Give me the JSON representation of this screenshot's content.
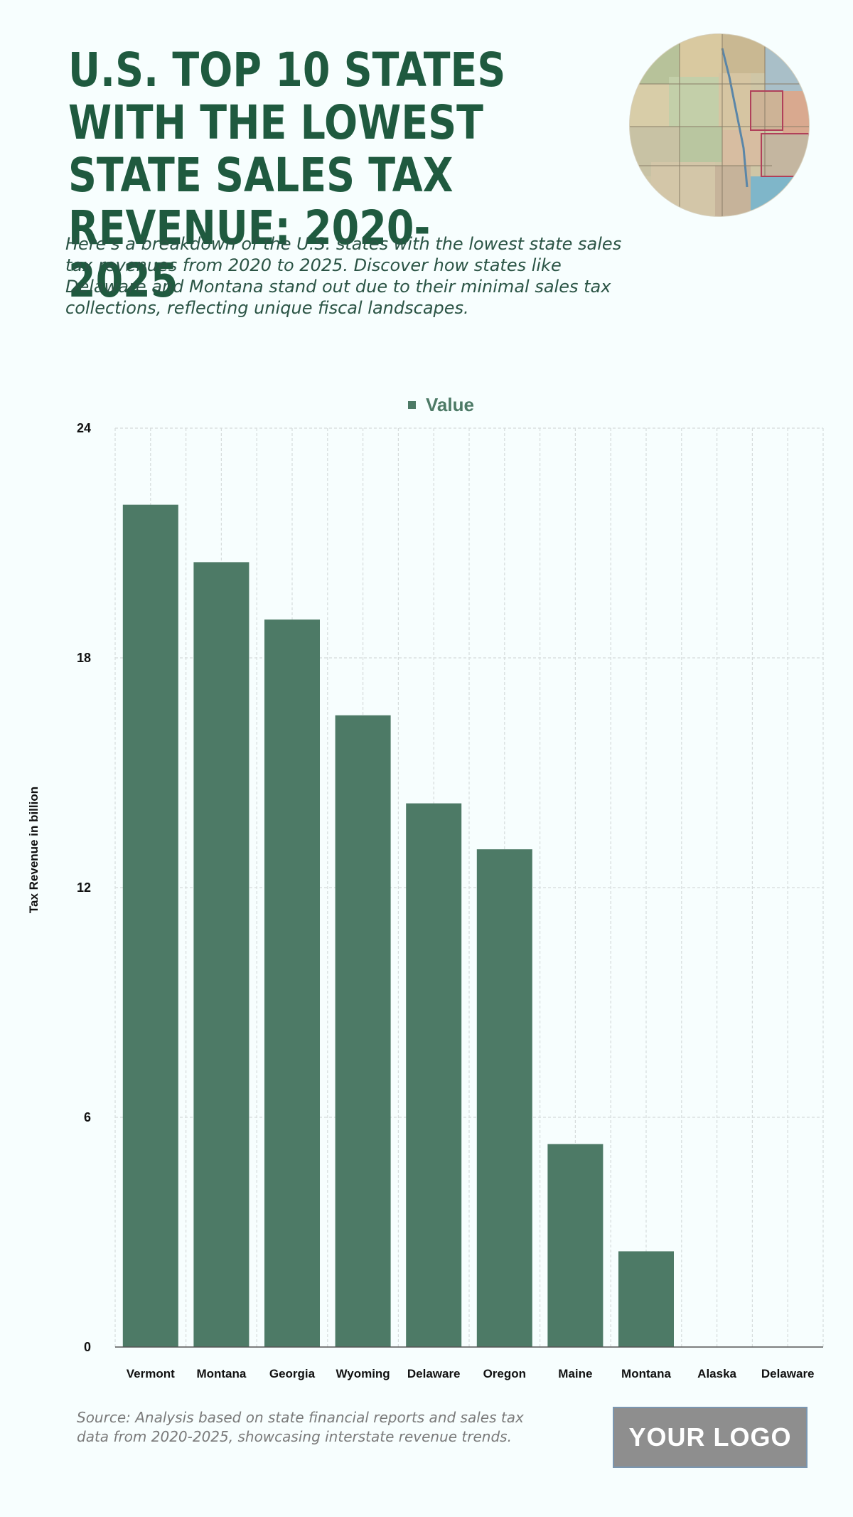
{
  "header": {
    "title": "U.S. TOP 10 STATES WITH THE LOWEST STATE SALES TAX REVENUE: 2020-2025",
    "subtitle": "Here's a breakdown of the U.S. states with the lowest state sales tax revenues from 2020 to 2025. Discover how states like Delaware and Montana stand out due to their minimal sales tax collections, reflecting unique fiscal landscapes."
  },
  "footer": {
    "source": "Source: Analysis based on state financial reports and sales tax data from 2020-2025, showcasing interstate revenue trends.",
    "logo_text": "YOUR LOGO"
  },
  "colors": {
    "bar": "#4d7a66",
    "title": "#1f5a3f",
    "grid": "#d6dcdc"
  },
  "chart_data": {
    "type": "bar",
    "categories": [
      "Vermont",
      "Montana",
      "Georgia",
      "Wyoming",
      "Delaware",
      "Oregon",
      "Maine",
      "Montana",
      "Alaska",
      "Delaware"
    ],
    "series": [
      {
        "name": "Value",
        "values": [
          22,
          20.5,
          19,
          16.5,
          14.2,
          13,
          5.3,
          2.5,
          0,
          0
        ]
      }
    ],
    "xlabel": "",
    "ylabel": "Tax Revenue in billion",
    "ylim": [
      0,
      24
    ],
    "yticks": [
      0,
      6,
      12,
      18,
      24
    ],
    "grid": true,
    "legend": "top-center"
  }
}
